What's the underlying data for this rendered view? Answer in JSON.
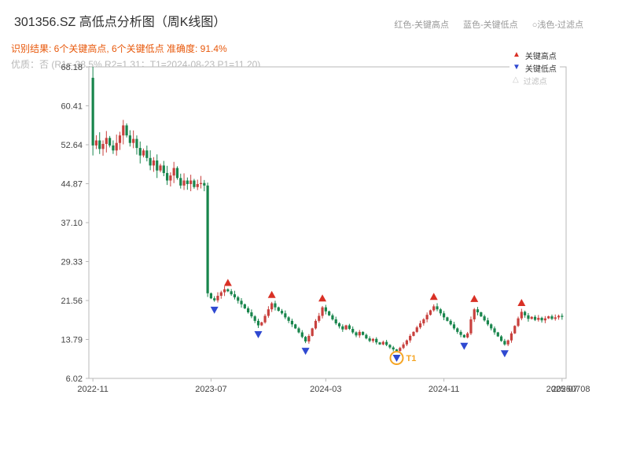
{
  "header": {
    "title": "301356.SZ 高低点分析图（周K线图）",
    "legend_top": [
      "红色-关键高点",
      "蓝色-关键低点",
      "○浅色-过滤点"
    ],
    "result_line": "识别结果: 6个关键高点, 6个关键低点  准确度: 91.4%",
    "quality_line": "优质：否 (R1=-38.5%  R2=1.31；T1=2024-08-23 P1=11.20)"
  },
  "legend_box": {
    "items": [
      {
        "label": "关键高点",
        "marker": "triangle-up",
        "color": "#d93025"
      },
      {
        "label": "关键低点",
        "marker": "triangle-down",
        "color": "#2f49d1"
      },
      {
        "label": "过滤点",
        "marker": "triangle-up-light",
        "color": "#c8c8c8"
      }
    ]
  },
  "chart_data": {
    "type": "candlestick",
    "title": "301356.SZ 高低点分析图（周K线图）",
    "timeframe": "weekly",
    "ylim": [
      6.02,
      68.18
    ],
    "y_ticks": [
      6.02,
      13.79,
      21.56,
      29.33,
      37.1,
      44.87,
      52.64,
      60.41,
      68.18
    ],
    "x_ticks": [
      {
        "label": "2022-11",
        "week": 0
      },
      {
        "label": "2023-07",
        "week": 35
      },
      {
        "label": "2024-03",
        "week": 69
      },
      {
        "label": "2024-11",
        "week": 104
      },
      {
        "label": "2025-07",
        "week": 139
      }
    ],
    "right_edge_label": "20250708",
    "first_open": 66.0,
    "closes": [
      52.5,
      53.5,
      51.8,
      52.8,
      54.0,
      52.5,
      51.5,
      53.0,
      54.5,
      56.5,
      54.5,
      53.0,
      53.8,
      52.0,
      50.5,
      51.5,
      50.0,
      48.5,
      49.5,
      47.5,
      48.5,
      47.0,
      45.5,
      46.5,
      48.0,
      46.0,
      44.5,
      45.5,
      44.8,
      45.5,
      44.2,
      44.8,
      45.0,
      44.5,
      23.0,
      22.0,
      21.6,
      22.5,
      23.2,
      23.8,
      23.4,
      22.8,
      22.2,
      21.5,
      20.8,
      20.0,
      19.2,
      18.4,
      17.5,
      16.6,
      17.2,
      18.5,
      19.8,
      21.0,
      20.2,
      19.5,
      19.0,
      18.2,
      17.5,
      16.8,
      16.0,
      15.2,
      14.3,
      13.4,
      14.5,
      16.0,
      17.5,
      18.5,
      20.2,
      19.4,
      18.6,
      17.8,
      17.0,
      16.4,
      15.8,
      16.6,
      15.9,
      15.2,
      14.6,
      15.3,
      14.7,
      14.0,
      13.5,
      13.9,
      13.2,
      12.8,
      13.3,
      12.7,
      12.2,
      11.8,
      11.5,
      12.1,
      12.8,
      13.6,
      14.5,
      15.3,
      16.2,
      17.0,
      17.8,
      18.7,
      19.6,
      20.4,
      19.8,
      19.0,
      18.2,
      17.5,
      16.8,
      16.0,
      15.3,
      14.7,
      14.2,
      15.0,
      17.8,
      19.8,
      19.2,
      18.4,
      17.6,
      16.8,
      16.0,
      15.2,
      14.4,
      13.5,
      12.8,
      13.6,
      15.0,
      16.5,
      18.0,
      19.3,
      18.6,
      17.9,
      18.3,
      17.7,
      18.1,
      17.6,
      18.0,
      18.4,
      17.9,
      18.2,
      18.5,
      18.3
    ],
    "overrides": {
      "0": {
        "open": 66.0,
        "high": 68.18,
        "low": 50.5
      },
      "9": {
        "high": 57.6
      }
    },
    "key_highs": [
      {
        "week": 40,
        "price": 24.0
      },
      {
        "week": 53,
        "price": 21.6
      },
      {
        "week": 68,
        "price": 20.9
      },
      {
        "week": 101,
        "price": 21.2
      },
      {
        "week": 113,
        "price": 20.8
      },
      {
        "week": 127,
        "price": 20.0
      }
    ],
    "key_lows": [
      {
        "week": 36,
        "price": 20.8
      },
      {
        "week": 49,
        "price": 15.9
      },
      {
        "week": 63,
        "price": 12.6
      },
      {
        "week": 90,
        "price": 11.2
      },
      {
        "week": 110,
        "price": 13.6
      },
      {
        "week": 122,
        "price": 12.1
      }
    ],
    "trade_point": {
      "week": 90,
      "price": 11.2,
      "label": "T1"
    },
    "colors": {
      "up": "#c8403d",
      "down": "#18854c",
      "key_high": "#d93025",
      "key_low": "#2f49d1",
      "trade": "#f5a524"
    }
  }
}
